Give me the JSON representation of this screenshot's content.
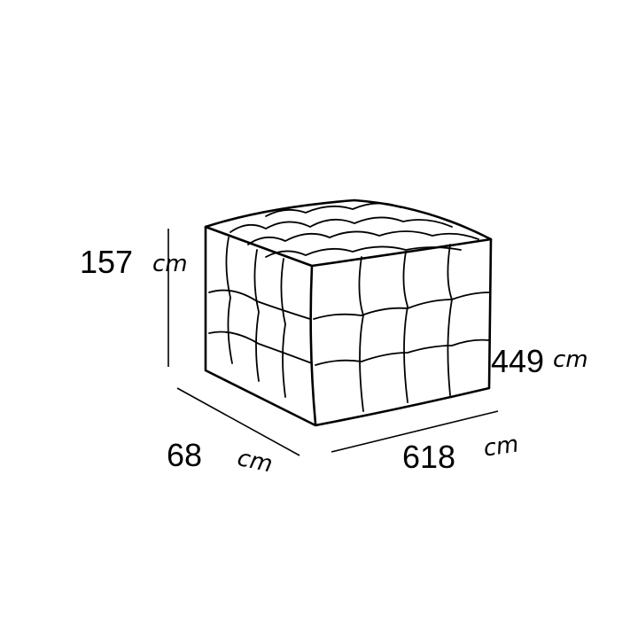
{
  "dimensions": {
    "height": {
      "value": "157",
      "unit": "cm"
    },
    "right": {
      "value": "449",
      "unit": "cm"
    },
    "depth": {
      "value": "68",
      "unit": "cm"
    },
    "width": {
      "value": "618",
      "unit": "cm"
    }
  }
}
